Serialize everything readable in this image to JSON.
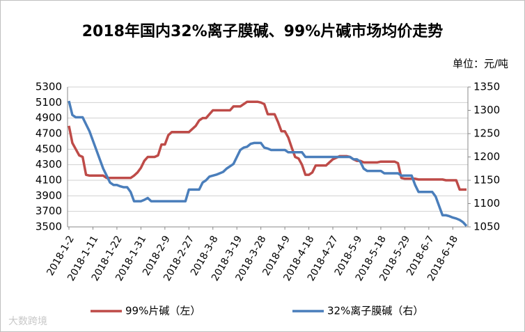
{
  "chart_data": {
    "type": "line",
    "title": "2018年国内32%离子膜碱、99%片碱市场均价走势",
    "unit_label": "单位：元/吨",
    "watermark": "大数跨境",
    "categories": [
      "2018-1-2",
      null,
      null,
      null,
      null,
      null,
      null,
      "2018-1-11",
      null,
      null,
      null,
      null,
      null,
      null,
      "2018-1-22",
      null,
      null,
      null,
      null,
      null,
      null,
      "2018-1-31",
      null,
      null,
      null,
      null,
      null,
      null,
      "2018-2-9",
      null,
      null,
      null,
      null,
      null,
      null,
      "2018-2-27",
      null,
      null,
      null,
      null,
      null,
      null,
      "2018-3-8",
      null,
      null,
      null,
      null,
      null,
      null,
      "2018-3-19",
      null,
      null,
      null,
      null,
      null,
      null,
      "2018-3-28",
      null,
      null,
      null,
      null,
      null,
      null,
      "2018-4-9",
      null,
      null,
      null,
      null,
      null,
      null,
      "2018-4-18",
      null,
      null,
      null,
      null,
      null,
      null,
      "2018-4-27",
      null,
      null,
      null,
      null,
      null,
      null,
      "2018-5-9",
      null,
      null,
      null,
      null,
      null,
      null,
      "2018-5-18",
      null,
      null,
      null,
      null,
      null,
      null,
      "2018-5-29",
      null,
      null,
      null,
      null,
      null,
      null,
      "2018-6-7",
      null,
      null,
      null,
      null,
      null,
      null,
      "2018-6-18",
      null,
      null,
      null,
      null
    ],
    "series": [
      {
        "name": "99%片碱（左）",
        "color": "#be4b48",
        "axis": "y",
        "values": [
          4800,
          4580,
          4500,
          4420,
          4400,
          4170,
          4160,
          4160,
          4160,
          4160,
          4160,
          4130,
          4130,
          4130,
          4130,
          4130,
          4130,
          4130,
          4130,
          4160,
          4200,
          4260,
          4350,
          4400,
          4400,
          4400,
          4420,
          4560,
          4560,
          4680,
          4720,
          4720,
          4720,
          4720,
          4720,
          4720,
          4760,
          4800,
          4870,
          4900,
          4900,
          4950,
          5000,
          5000,
          5000,
          5000,
          5000,
          5000,
          5050,
          5050,
          5050,
          5080,
          5110,
          5110,
          5110,
          5110,
          5100,
          5080,
          4950,
          4950,
          4950,
          4850,
          4730,
          4730,
          4650,
          4520,
          4400,
          4380,
          4300,
          4170,
          4170,
          4200,
          4290,
          4290,
          4290,
          4290,
          4330,
          4370,
          4390,
          4410,
          4410,
          4410,
          4400,
          4370,
          4350,
          4350,
          4330,
          4330,
          4330,
          4330,
          4330,
          4340,
          4340,
          4340,
          4340,
          4340,
          4320,
          4130,
          4120,
          4120,
          4120,
          4120,
          4110,
          4110,
          4110,
          4110,
          4110,
          4110,
          4110,
          4110,
          4100,
          4100,
          4100,
          4100,
          3980,
          3980,
          3980
        ]
      },
      {
        "name": "32%离子膜碱（右）",
        "color": "#4a7ebb",
        "axis": "y2",
        "values": [
          1320,
          1290,
          1285,
          1285,
          1285,
          1270,
          1255,
          1235,
          1215,
          1195,
          1175,
          1160,
          1145,
          1140,
          1140,
          1137,
          1135,
          1135,
          1125,
          1105,
          1105,
          1105,
          1108,
          1112,
          1105,
          1105,
          1105,
          1105,
          1105,
          1105,
          1105,
          1105,
          1105,
          1105,
          1105,
          1130,
          1130,
          1130,
          1130,
          1145,
          1150,
          1158,
          1160,
          1162,
          1165,
          1168,
          1175,
          1180,
          1185,
          1200,
          1215,
          1220,
          1222,
          1228,
          1230,
          1230,
          1230,
          1220,
          1218,
          1215,
          1215,
          1215,
          1215,
          1215,
          1210,
          1210,
          1210,
          1210,
          1210,
          1200,
          1200,
          1200,
          1200,
          1200,
          1200,
          1200,
          1200,
          1200,
          1200,
          1200,
          1200,
          1200,
          1200,
          1195,
          1195,
          1190,
          1175,
          1170,
          1170,
          1170,
          1170,
          1170,
          1165,
          1165,
          1165,
          1165,
          1165,
          1160,
          1160,
          1160,
          1160,
          1140,
          1125,
          1125,
          1125,
          1125,
          1125,
          1115,
          1095,
          1075,
          1075,
          1073,
          1070,
          1068,
          1065,
          1060,
          1052
        ]
      }
    ],
    "ylim": [
      3500,
      5300
    ],
    "yticks": [
      3500,
      3700,
      3900,
      4100,
      4300,
      4500,
      4700,
      4900,
      5100,
      5300
    ],
    "y2lim": [
      1050,
      1350
    ],
    "y2ticks": [
      1050,
      1100,
      1150,
      1200,
      1250,
      1300,
      1350
    ],
    "grid": true
  }
}
